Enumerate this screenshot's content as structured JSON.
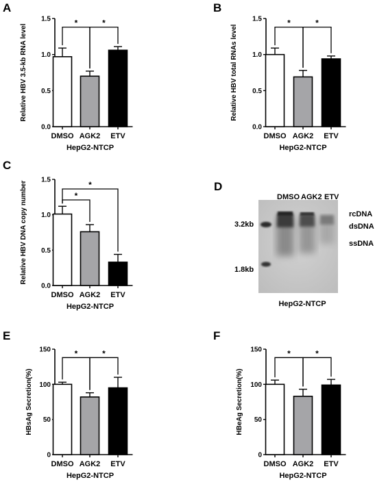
{
  "chart_data": [
    {
      "panel": "A",
      "type": "bar",
      "categories": [
        "DMSO",
        "AGK2",
        "ETV"
      ],
      "values": [
        0.97,
        0.7,
        1.06
      ],
      "errors": [
        0.12,
        0.07,
        0.05
      ],
      "bar_colors": [
        "#ffffff",
        "#a5a5a8",
        "#000000"
      ],
      "xlabel": "HepG2-NTCP",
      "ylabel": "Relative HBV 3.5-kb RNA level",
      "ylim": [
        0,
        1.5
      ],
      "yticks": [
        "0.0",
        "0.5",
        "1.0",
        "1.5"
      ],
      "significance": [
        {
          "from": 0,
          "to": 1,
          "label": "*"
        },
        {
          "from": 1,
          "to": 2,
          "label": "*"
        }
      ]
    },
    {
      "panel": "B",
      "type": "bar",
      "categories": [
        "DMSO",
        "AGK2",
        "ETV"
      ],
      "values": [
        1.0,
        0.69,
        0.94
      ],
      "errors": [
        0.09,
        0.09,
        0.04
      ],
      "bar_colors": [
        "#ffffff",
        "#a5a5a8",
        "#000000"
      ],
      "xlabel": "HepG2-NTCP",
      "ylabel": "Relative HBV total RNAs level",
      "ylim": [
        0,
        1.5
      ],
      "yticks": [
        "0.0",
        "0.5",
        "1.0",
        "1.5"
      ],
      "significance": [
        {
          "from": 0,
          "to": 1,
          "label": "*"
        },
        {
          "from": 1,
          "to": 2,
          "label": "*"
        }
      ]
    },
    {
      "panel": "C",
      "type": "bar",
      "categories": [
        "DMSO",
        "AGK2",
        "ETV"
      ],
      "values": [
        1.01,
        0.76,
        0.33
      ],
      "errors": [
        0.11,
        0.1,
        0.11
      ],
      "bar_colors": [
        "#ffffff",
        "#a5a5a8",
        "#000000"
      ],
      "xlabel": "HepG2-NTCP",
      "ylabel": "Relative HBV DNA copy number",
      "ylim": [
        0,
        1.5
      ],
      "yticks": [
        "0.0",
        "0.5",
        "1.0",
        "1.5"
      ],
      "significance": [
        {
          "from": 0,
          "to": 1,
          "label": "*"
        },
        {
          "from": 0,
          "to": 2,
          "label": "*"
        }
      ]
    },
    {
      "panel": "E",
      "type": "bar",
      "categories": [
        "DMSO",
        "AGK2",
        "ETV"
      ],
      "values": [
        100,
        82,
        95
      ],
      "errors": [
        3,
        6,
        15
      ],
      "bar_colors": [
        "#ffffff",
        "#a5a5a8",
        "#000000"
      ],
      "xlabel": "HepG2-NTCP",
      "ylabel": "HBsAg Secretion(%)",
      "ylim": [
        0,
        150
      ],
      "yticks": [
        "0",
        "50",
        "100",
        "150"
      ],
      "significance": [
        {
          "from": 0,
          "to": 1,
          "label": "*"
        },
        {
          "from": 1,
          "to": 2,
          "label": "*"
        }
      ]
    },
    {
      "panel": "F",
      "type": "bar",
      "categories": [
        "DMSO",
        "AGK2",
        "ETV"
      ],
      "values": [
        100,
        83,
        99
      ],
      "errors": [
        6,
        10,
        8
      ],
      "bar_colors": [
        "#ffffff",
        "#a5a5a8",
        "#000000"
      ],
      "xlabel": "HepG2-NTCP",
      "ylabel": "HBeAg Secretion(%)",
      "ylim": [
        0,
        150
      ],
      "yticks": [
        "0",
        "50",
        "100",
        "150"
      ],
      "significance": [
        {
          "from": 0,
          "to": 1,
          "label": "*"
        },
        {
          "from": 1,
          "to": 2,
          "label": "*"
        }
      ]
    }
  ],
  "blot": {
    "panel": "D",
    "lanes": [
      "DMSO",
      "AGK2",
      "ETV"
    ],
    "markers": [
      "3.2kb",
      "1.8kb"
    ],
    "band_labels": [
      "rcDNA",
      "dsDNA",
      "ssDNA"
    ],
    "xlabel": "HepG2-NTCP"
  }
}
